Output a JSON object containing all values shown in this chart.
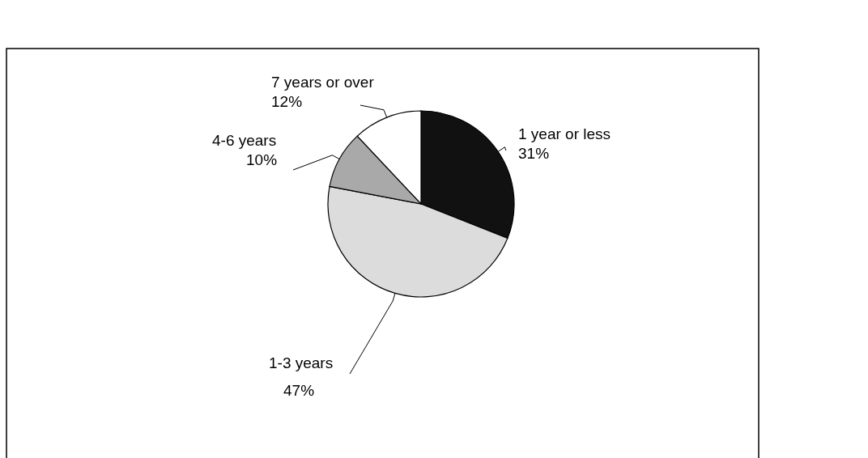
{
  "chart_data": {
    "type": "pie",
    "categories": [
      "1 year or less",
      "1-3 years",
      "4-6 years",
      "7 years or over"
    ],
    "values": [
      31,
      47,
      10,
      12
    ],
    "colors": [
      "#111111",
      "#dcdcdc",
      "#a9a9a9",
      "#ffffff"
    ],
    "value_labels": [
      "31%",
      "47%",
      "10%",
      "12%"
    ]
  }
}
